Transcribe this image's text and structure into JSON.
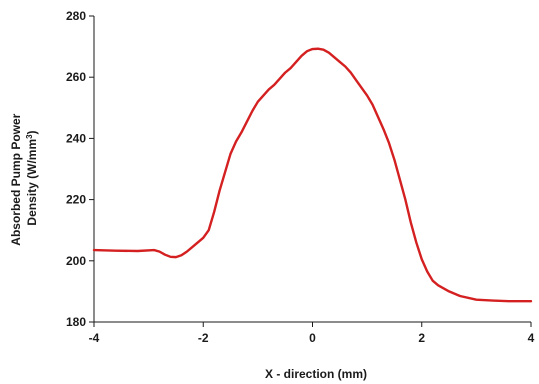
{
  "chart_data": {
    "type": "line",
    "title": "",
    "xlabel": "X - direction (mm)",
    "ylabel_line1": "Absorbed Pump Power",
    "ylabel_line2_prefix": "Density (W/mm",
    "ylabel_line2_sup": "3",
    "ylabel_line2_suffix": ")",
    "xlim": [
      -4,
      4
    ],
    "ylim": [
      180,
      280
    ],
    "x_ticks": [
      -4,
      -2,
      0,
      2,
      4
    ],
    "y_ticks": [
      180,
      200,
      220,
      240,
      260,
      280
    ],
    "x_tick_labels": [
      "-4",
      "-2",
      "0",
      "2",
      "4"
    ],
    "y_tick_labels": [
      "180",
      "200",
      "220",
      "240",
      "260",
      "280"
    ],
    "grid": false,
    "legend": "none",
    "series": [
      {
        "color": "#d42020",
        "x": [
          -4.0,
          -3.6,
          -3.2,
          -2.9,
          -2.8,
          -2.7,
          -2.6,
          -2.5,
          -2.4,
          -2.3,
          -2.2,
          -2.1,
          -2.0,
          -1.9,
          -1.8,
          -1.7,
          -1.6,
          -1.5,
          -1.4,
          -1.3,
          -1.2,
          -1.1,
          -1.0,
          -0.9,
          -0.8,
          -0.7,
          -0.6,
          -0.5,
          -0.4,
          -0.3,
          -0.2,
          -0.1,
          0.0,
          0.1,
          0.2,
          0.3,
          0.4,
          0.5,
          0.6,
          0.7,
          0.8,
          0.9,
          1.0,
          1.1,
          1.2,
          1.3,
          1.4,
          1.5,
          1.6,
          1.7,
          1.8,
          1.9,
          2.0,
          2.1,
          2.2,
          2.3,
          2.5,
          2.7,
          3.0,
          3.3,
          3.6,
          4.0
        ],
        "y": [
          203.5,
          203.3,
          203.2,
          203.5,
          203.0,
          202.0,
          201.3,
          201.2,
          201.8,
          203.0,
          204.5,
          206.0,
          207.5,
          210.0,
          216.0,
          223.0,
          229.0,
          235.0,
          239.0,
          242.0,
          245.5,
          249.0,
          252.0,
          254.0,
          256.0,
          257.5,
          259.5,
          261.5,
          263.0,
          265.0,
          267.0,
          268.5,
          269.2,
          269.3,
          269.0,
          268.0,
          266.5,
          265.0,
          263.5,
          261.5,
          259.0,
          256.5,
          254.0,
          251.0,
          247.0,
          243.0,
          238.5,
          233.0,
          226.5,
          220.0,
          212.5,
          206.0,
          200.5,
          196.5,
          193.5,
          192.0,
          190.0,
          188.5,
          187.3,
          187.0,
          186.8,
          186.8
        ]
      }
    ]
  }
}
